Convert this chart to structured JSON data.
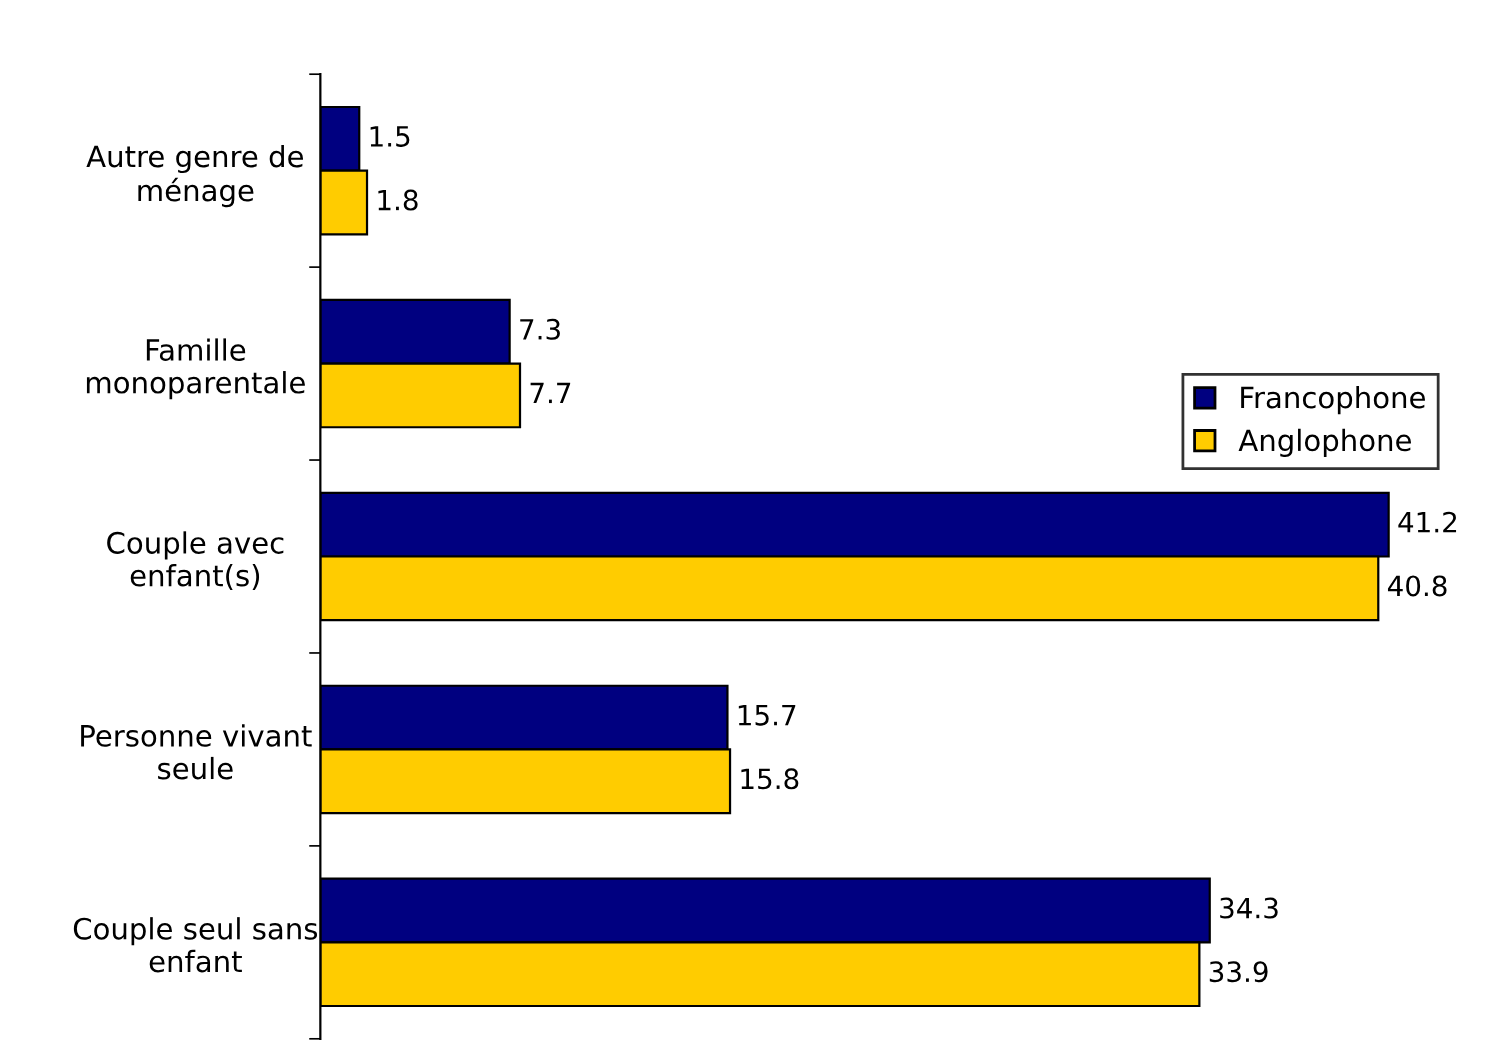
{
  "chart_data": {
    "type": "bar",
    "orientation": "horizontal",
    "categories": [
      "Autre genre de\nménage",
      "Famille\nmonoparentale",
      "Couple avec\nenfant(s)",
      "Personne vivant\nseule",
      "Couple seul sans\nenfant"
    ],
    "series": [
      {
        "name": "Francophone",
        "color": "#000080",
        "values": [
          1.5,
          7.3,
          41.2,
          15.7,
          34.3
        ]
      },
      {
        "name": "Anglophone",
        "color": "#ffcc00",
        "values": [
          1.8,
          7.7,
          40.8,
          15.8,
          33.9
        ]
      }
    ],
    "data_labels": true,
    "legend": "right",
    "grid": false,
    "tick_labels": "y"
  }
}
